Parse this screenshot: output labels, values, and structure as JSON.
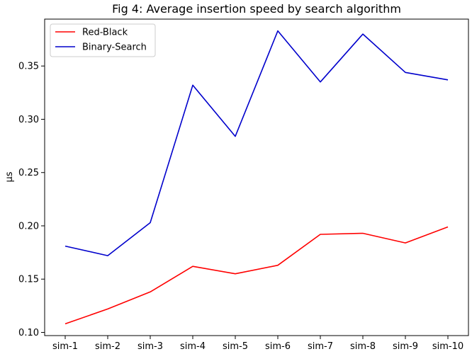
{
  "chart_data": {
    "type": "line",
    "title": "Fig 4: Average insertion speed by search algorithm",
    "xlabel": "",
    "ylabel": "µs",
    "categories": [
      "sim-1",
      "sim-2",
      "sim-3",
      "sim-4",
      "sim-5",
      "sim-6",
      "sim-7",
      "sim-8",
      "sim-9",
      "sim-10"
    ],
    "series": [
      {
        "name": "Red-Black",
        "color": "#ff0000",
        "values": [
          0.108,
          0.122,
          0.138,
          0.162,
          0.155,
          0.163,
          0.192,
          0.193,
          0.184,
          0.199
        ]
      },
      {
        "name": "Binary-Search",
        "color": "#0000cc",
        "values": [
          0.181,
          0.172,
          0.203,
          0.332,
          0.284,
          0.383,
          0.335,
          0.38,
          0.344,
          0.337
        ]
      }
    ],
    "ylim": [
      0.097,
      0.394
    ],
    "yticks": [
      0.1,
      0.15,
      0.2,
      0.25,
      0.3,
      0.35
    ],
    "ytick_labels": [
      "0.10",
      "0.15",
      "0.20",
      "0.25",
      "0.30",
      "0.35"
    ],
    "grid": false,
    "legend_position": "top-left"
  }
}
